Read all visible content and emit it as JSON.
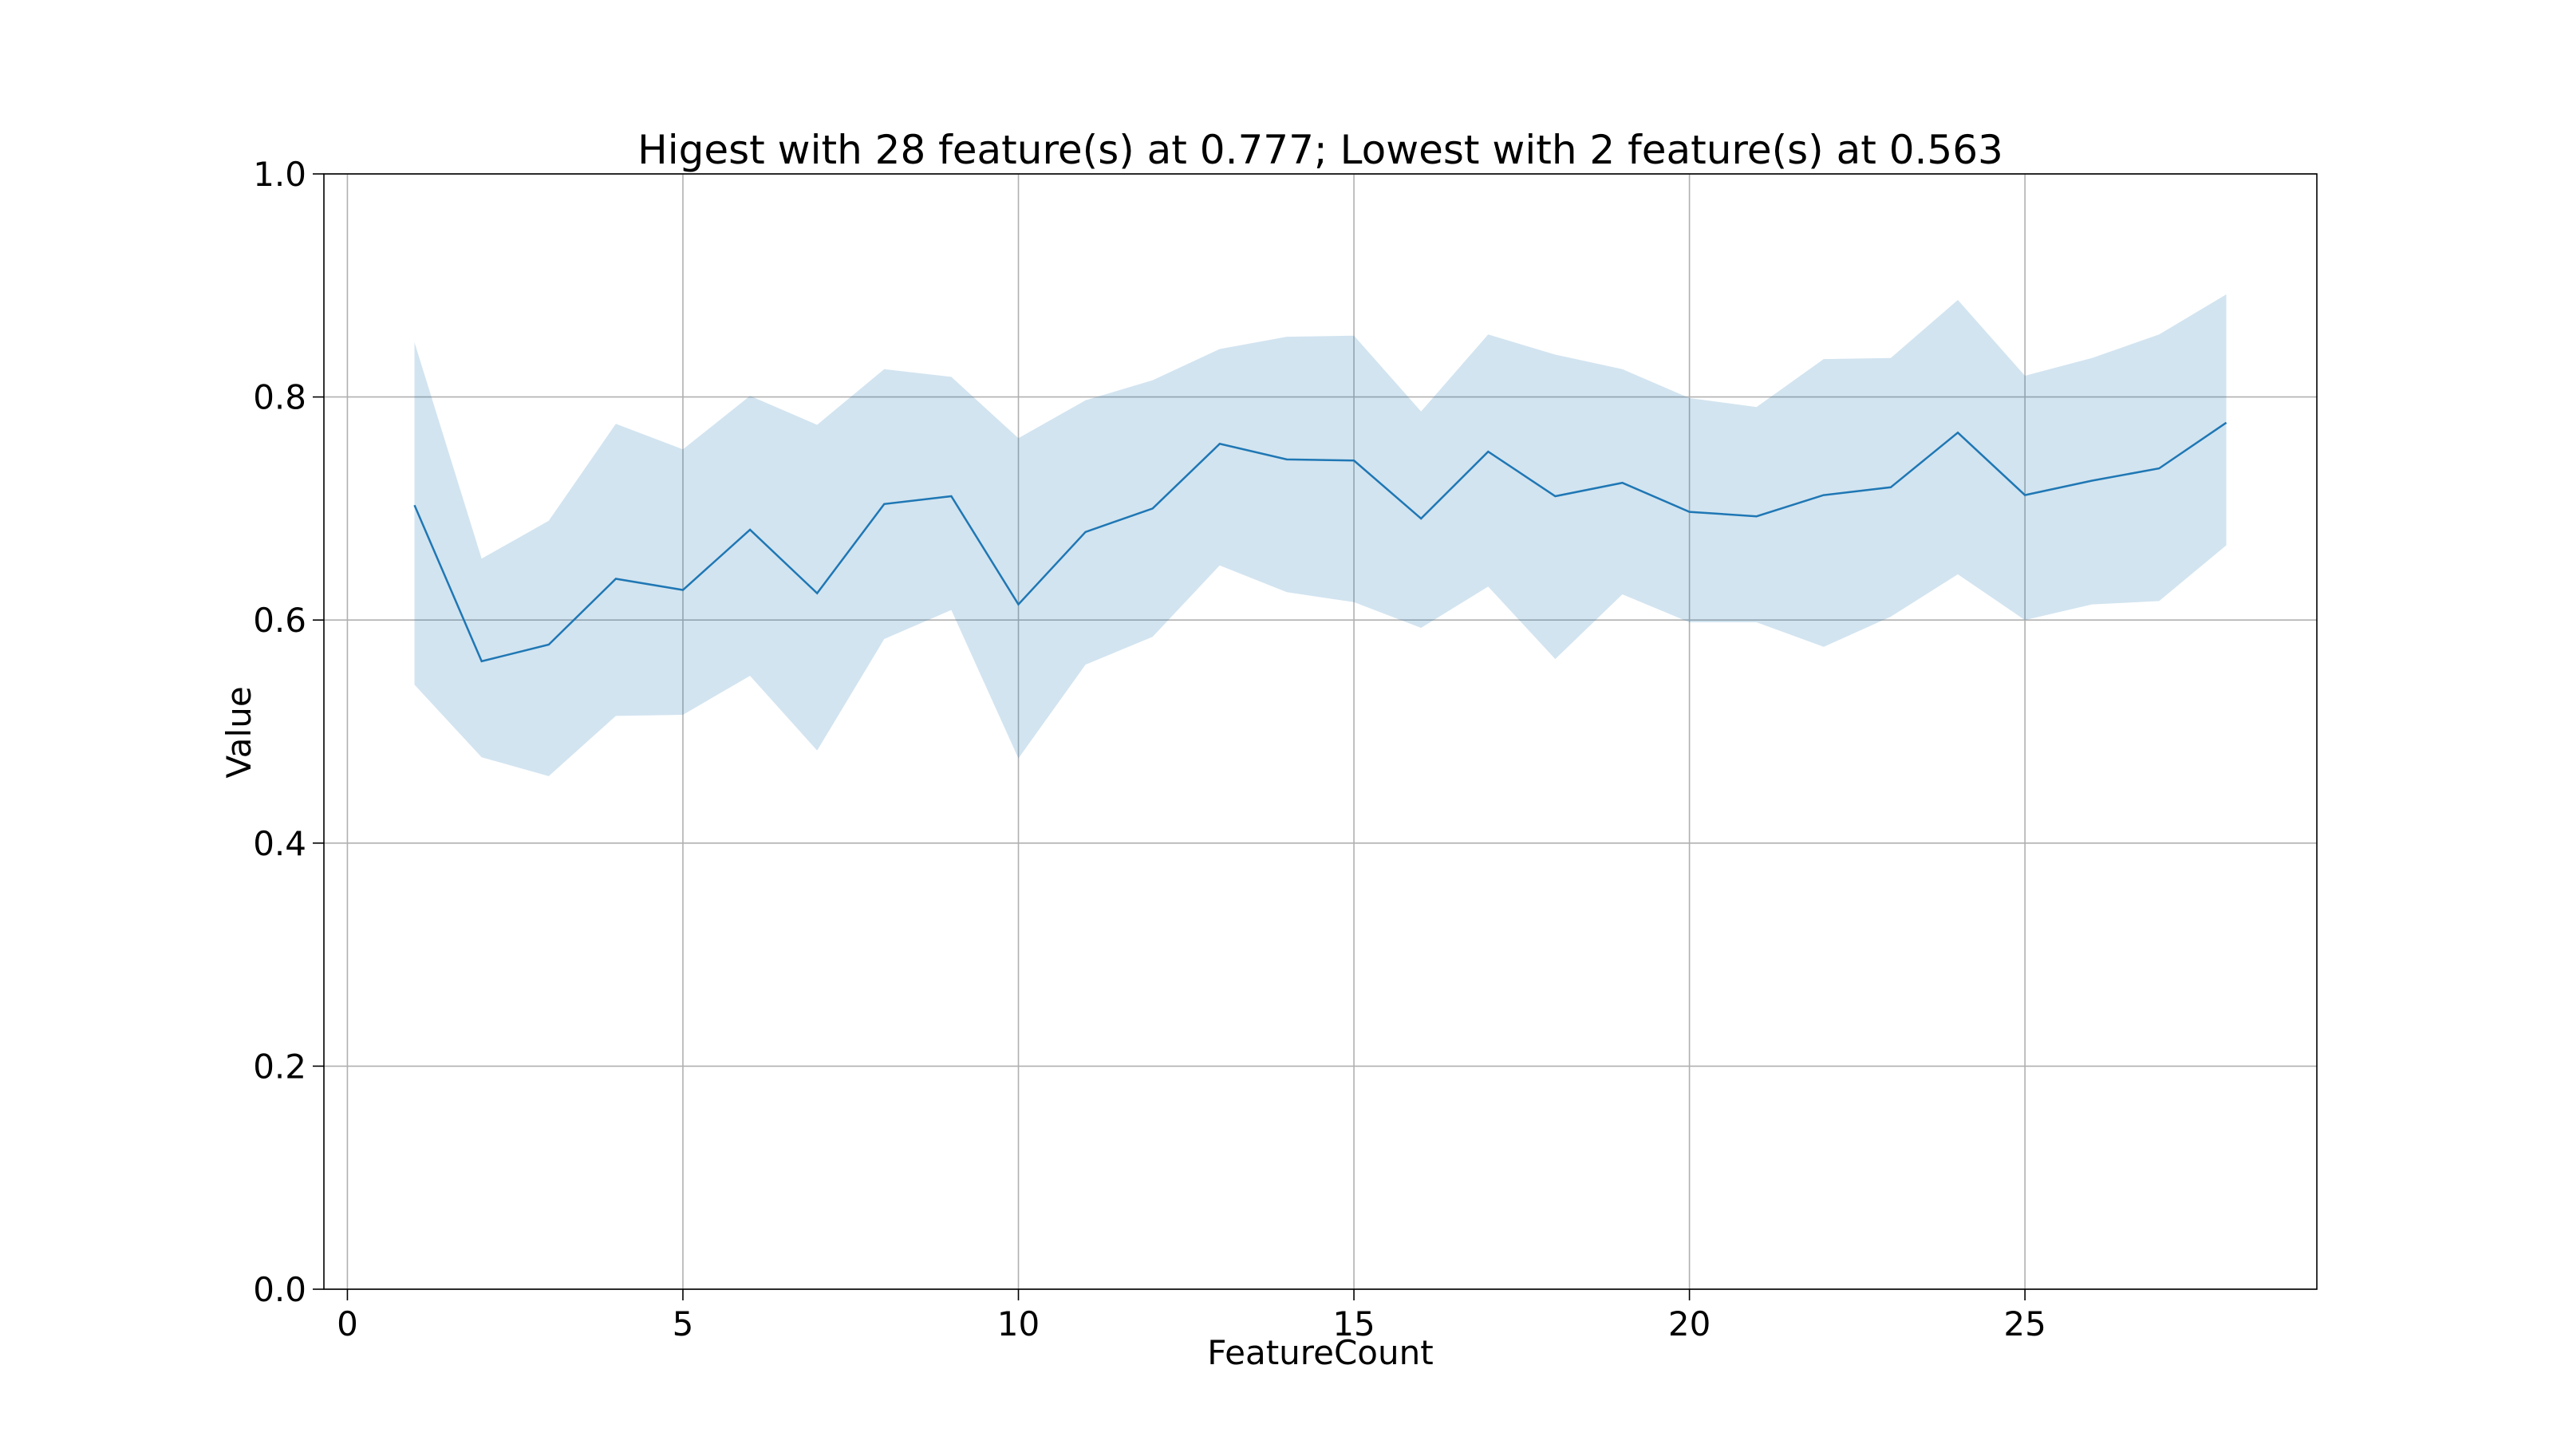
{
  "chart_data": {
    "type": "line",
    "title": "Higest with 28 feature(s) at 0.777; Lowest with 2 feature(s) at 0.563",
    "xlabel": "FeatureCount",
    "ylabel": "Value",
    "xlim": [
      -0.35,
      29.35
    ],
    "ylim": [
      0.0,
      1.0
    ],
    "xticks": [
      0,
      5,
      10,
      15,
      20,
      25
    ],
    "yticks": [
      0.0,
      0.2,
      0.4,
      0.6,
      0.8,
      1.0
    ],
    "xtick_labels": [
      "0",
      "5",
      "10",
      "15",
      "20",
      "25"
    ],
    "ytick_labels": [
      "0.0",
      "0.2",
      "0.4",
      "0.6",
      "0.8",
      "1.0"
    ],
    "grid": true,
    "line_color": "#1f77b4",
    "band_color": "#1f77b4",
    "series": [
      {
        "x": [
          1,
          2,
          3,
          4,
          5,
          6,
          7,
          8,
          9,
          10,
          11,
          12,
          13,
          14,
          15,
          16,
          17,
          18,
          19,
          20,
          21,
          22,
          23,
          24,
          25,
          26,
          27,
          28
        ],
        "values": [
          0.703,
          0.563,
          0.578,
          0.637,
          0.627,
          0.681,
          0.624,
          0.704,
          0.711,
          0.614,
          0.679,
          0.7,
          0.758,
          0.744,
          0.743,
          0.691,
          0.751,
          0.711,
          0.723,
          0.697,
          0.693,
          0.712,
          0.719,
          0.768,
          0.712,
          0.725,
          0.736,
          0.777
        ],
        "upper": [
          0.849,
          0.655,
          0.689,
          0.776,
          0.753,
          0.801,
          0.775,
          0.825,
          0.818,
          0.763,
          0.797,
          0.815,
          0.843,
          0.854,
          0.855,
          0.787,
          0.856,
          0.838,
          0.825,
          0.799,
          0.791,
          0.834,
          0.835,
          0.887,
          0.819,
          0.835,
          0.856,
          0.892
        ],
        "lower": [
          0.542,
          0.477,
          0.46,
          0.514,
          0.515,
          0.55,
          0.483,
          0.583,
          0.609,
          0.476,
          0.56,
          0.585,
          0.649,
          0.625,
          0.616,
          0.593,
          0.63,
          0.565,
          0.623,
          0.598,
          0.598,
          0.576,
          0.603,
          0.641,
          0.6,
          0.614,
          0.617,
          0.667
        ]
      }
    ]
  }
}
